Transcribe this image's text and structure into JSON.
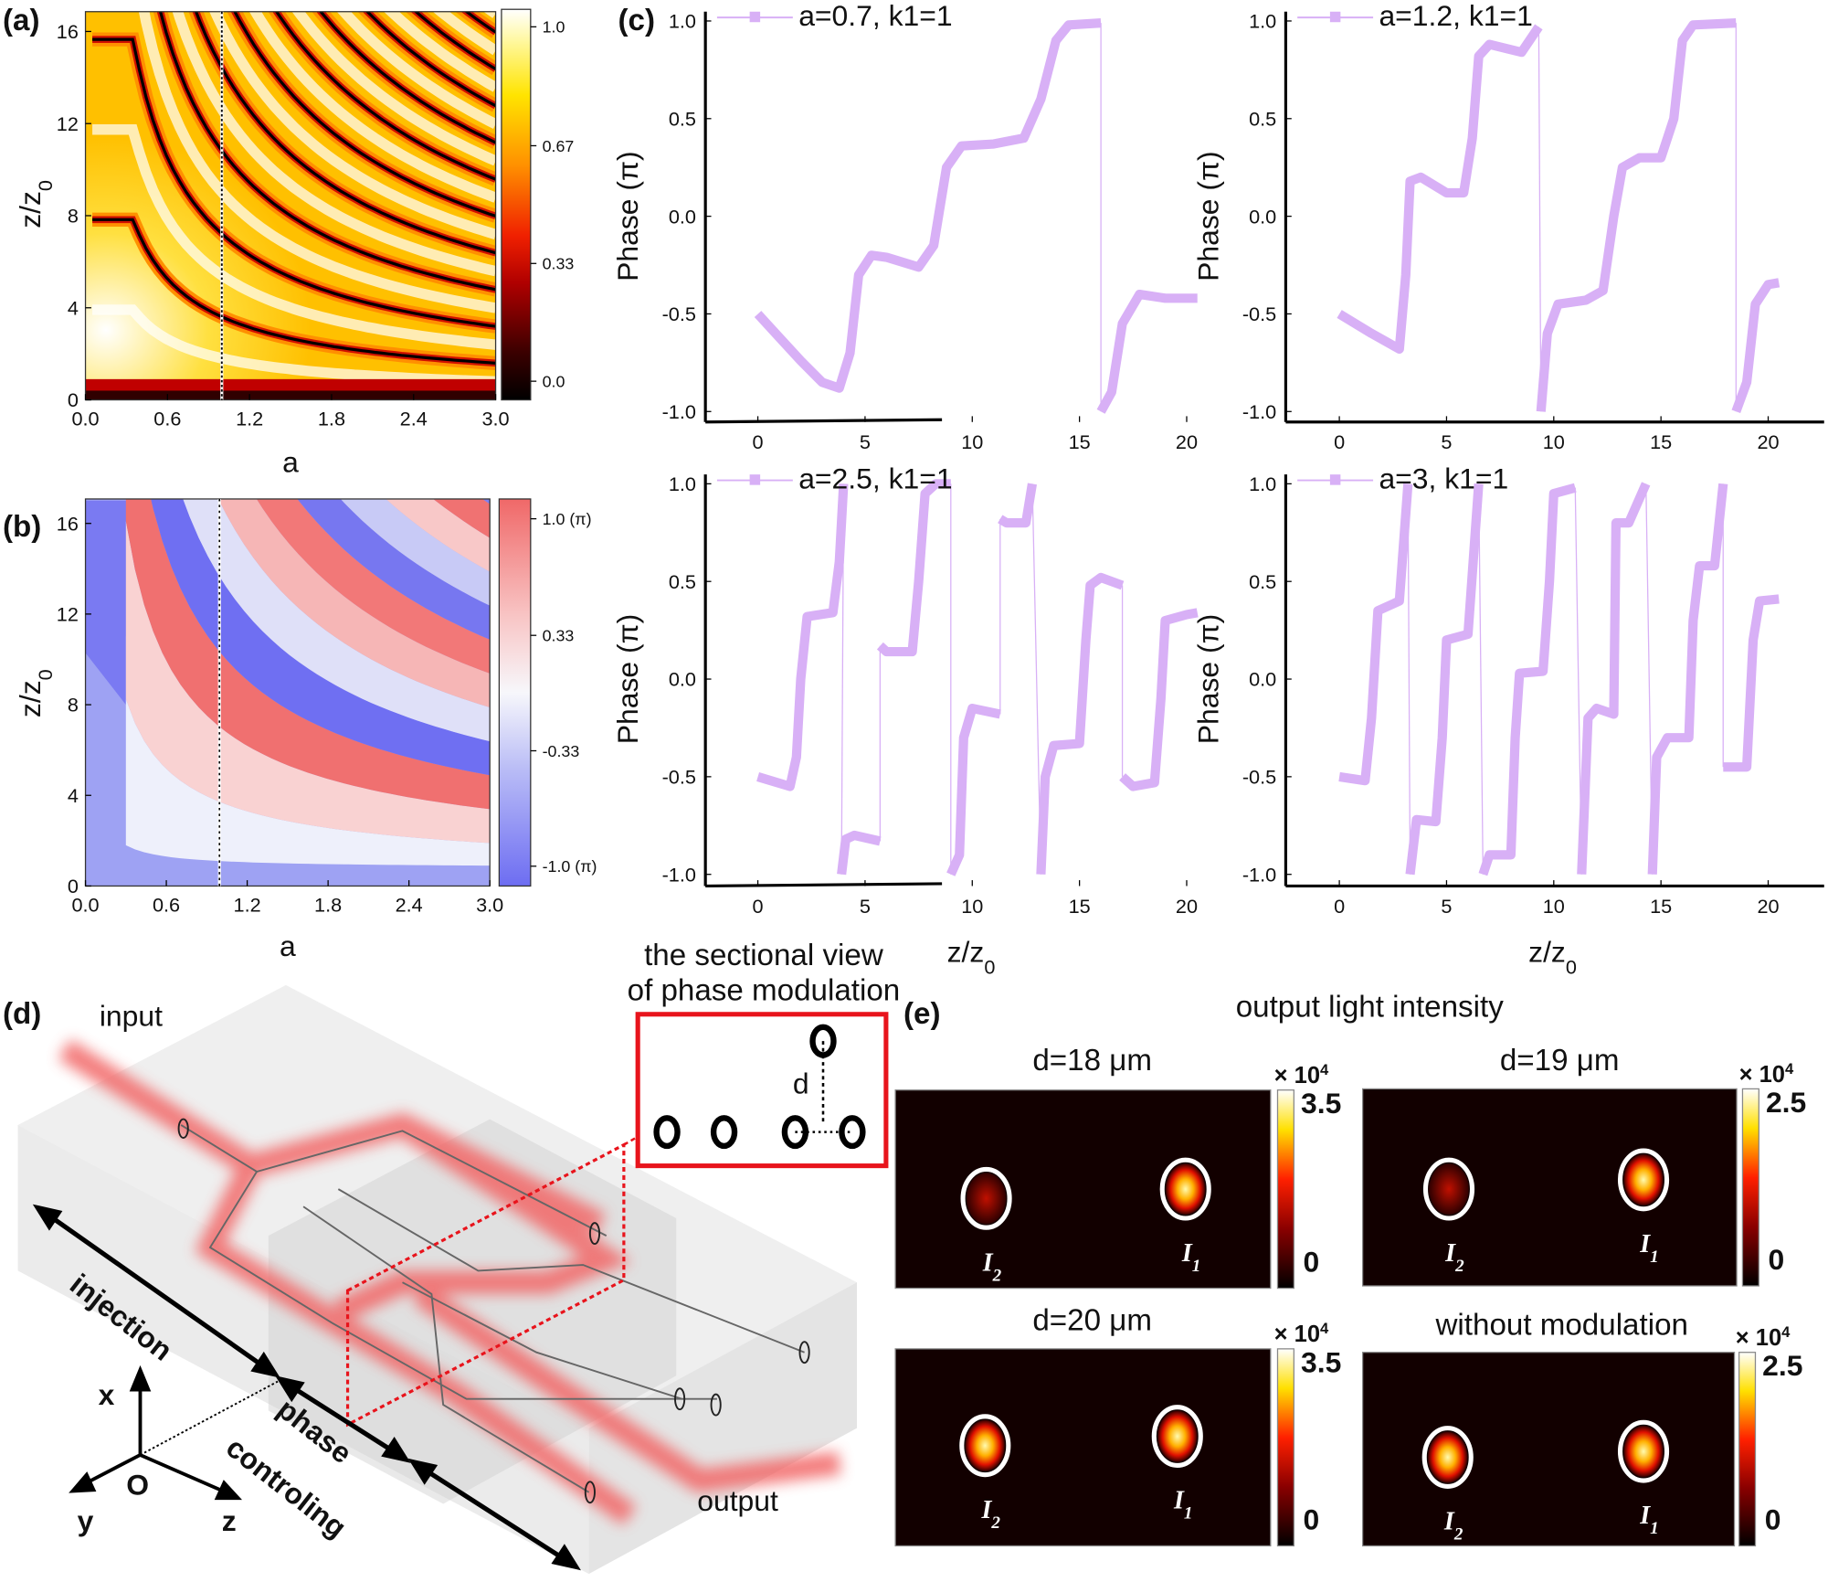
{
  "panel_labels": {
    "a": "(a)",
    "b": "(b)",
    "c": "(c)",
    "d": "(d)",
    "e": "(e)"
  },
  "chart_data": [
    {
      "id": "a",
      "type": "heatmap",
      "title": "",
      "xlabel": "a",
      "ylabel": {
        "main": "z/z",
        "sub": "0"
      },
      "xlim": [
        0,
        3.0
      ],
      "ylim": [
        0,
        17
      ],
      "xticks": [
        "0.0",
        "0.6",
        "1.2",
        "1.8",
        "2.4",
        "3.0"
      ],
      "yticks": [
        "0",
        "4",
        "8",
        "12",
        "16"
      ],
      "marker_line_a": 1.0,
      "colorbar": {
        "ticks": [
          "1.0",
          "0.67",
          "0.33",
          "0.0"
        ],
        "range": [
          0,
          1
        ],
        "colormap": "hot"
      }
    },
    {
      "id": "b",
      "type": "heatmap",
      "title": "",
      "xlabel": "a",
      "ylabel": {
        "main": "z/z",
        "sub": "0"
      },
      "xlim": [
        0,
        3.0
      ],
      "ylim": [
        0,
        17
      ],
      "xticks": [
        "0.0",
        "0.6",
        "1.2",
        "1.8",
        "2.4",
        "3.0"
      ],
      "yticks": [
        "0",
        "4",
        "8",
        "12",
        "16"
      ],
      "marker_line_a": 1.0,
      "colorbar": {
        "ticks": [
          "1.0 (π)",
          "0.33",
          "-0.33",
          "-1.0 (π)"
        ],
        "range": [
          -1,
          1
        ],
        "colormap": "blue-white-red"
      }
    },
    {
      "id": "c",
      "type": "line",
      "ylabel": "Phase (π)",
      "xlabel": {
        "main": "z/z",
        "sub": "0"
      },
      "xticks": [
        "0",
        "5",
        "10",
        "15",
        "20"
      ],
      "yticks": [
        "1.0",
        "0.5",
        "0.0",
        "-0.5",
        "-1.0"
      ],
      "xlim": [
        -2.4,
        21
      ],
      "ylim": [
        -1.0,
        1.0
      ],
      "color": "#d8b0f6",
      "series": [
        {
          "name": "a=0.7, k1=1",
          "segments": [
            [
              [
                0,
                -0.5
              ],
              [
                1,
                -0.62
              ],
              [
                2,
                -0.74
              ],
              [
                3,
                -0.85
              ],
              [
                3.8,
                -0.88
              ],
              [
                4.3,
                -0.7
              ],
              [
                4.7,
                -0.3
              ],
              [
                5.3,
                -0.2
              ],
              [
                6,
                -0.21
              ],
              [
                7.5,
                -0.26
              ],
              [
                8.2,
                -0.15
              ],
              [
                8.8,
                0.25
              ],
              [
                9.5,
                0.36
              ],
              [
                11,
                0.37
              ],
              [
                12.4,
                0.4
              ],
              [
                13.2,
                0.6
              ],
              [
                13.9,
                0.9
              ],
              [
                14.5,
                0.98
              ],
              [
                16,
                0.99
              ]
            ],
            [
              [
                16,
                -1.0
              ],
              [
                16.5,
                -0.9
              ],
              [
                17,
                -0.55
              ],
              [
                17.8,
                -0.4
              ],
              [
                19,
                -0.42
              ],
              [
                20.5,
                -0.42
              ]
            ]
          ]
        },
        {
          "name": "a=1.2, k1=1",
          "segments": [
            [
              [
                0,
                -0.5
              ],
              [
                1.5,
                -0.6
              ],
              [
                2.8,
                -0.68
              ],
              [
                3.1,
                -0.3
              ],
              [
                3.3,
                0.18
              ],
              [
                3.8,
                0.2
              ],
              [
                5,
                0.12
              ],
              [
                5.8,
                0.12
              ],
              [
                6.2,
                0.4
              ],
              [
                6.5,
                0.82
              ],
              [
                7,
                0.88
              ],
              [
                8.5,
                0.84
              ],
              [
                9.3,
                0.97
              ]
            ],
            [
              [
                9.4,
                -1.0
              ],
              [
                9.7,
                -0.6
              ],
              [
                10.2,
                -0.45
              ],
              [
                11.5,
                -0.43
              ],
              [
                12.3,
                -0.38
              ],
              [
                12.8,
                0.0
              ],
              [
                13.2,
                0.25
              ],
              [
                14,
                0.3
              ],
              [
                15,
                0.3
              ],
              [
                15.6,
                0.5
              ],
              [
                16,
                0.9
              ],
              [
                16.5,
                0.98
              ],
              [
                18.5,
                0.99
              ]
            ],
            [
              [
                18.5,
                -1.0
              ],
              [
                19,
                -0.85
              ],
              [
                19.4,
                -0.45
              ],
              [
                20,
                -0.35
              ],
              [
                20.5,
                -0.34
              ]
            ]
          ]
        },
        {
          "name": "a=2.5, k1=1",
          "segments": [
            [
              [
                0,
                -0.5
              ],
              [
                1.5,
                -0.55
              ],
              [
                1.8,
                -0.4
              ],
              [
                2,
                0
              ],
              [
                2.3,
                0.32
              ],
              [
                3.5,
                0.34
              ],
              [
                3.8,
                0.6
              ],
              [
                4,
                1.0
              ]
            ],
            [
              [
                3.9,
                -1.0
              ],
              [
                4.1,
                -0.82
              ],
              [
                4.5,
                -0.8
              ],
              [
                5.7,
                -0.83
              ]
            ],
            [
              [
                5.7,
                0.17
              ],
              [
                6,
                0.14
              ],
              [
                7.2,
                0.14
              ],
              [
                7.5,
                0.5
              ],
              [
                7.8,
                0.95
              ],
              [
                8.3,
                1.0
              ],
              [
                9,
                1.0
              ]
            ],
            [
              [
                9,
                -1.0
              ],
              [
                9.4,
                -0.9
              ],
              [
                9.6,
                -0.3
              ],
              [
                10,
                -0.15
              ],
              [
                11.3,
                -0.18
              ]
            ],
            [
              [
                11.3,
                0.82
              ],
              [
                11.6,
                0.8
              ],
              [
                12.5,
                0.8
              ],
              [
                12.8,
                1.0
              ]
            ],
            [
              [
                13.2,
                -1.0
              ],
              [
                13.4,
                -0.5
              ],
              [
                13.8,
                -0.34
              ],
              [
                15,
                -0.33
              ],
              [
                15.3,
                0.2
              ],
              [
                15.5,
                0.48
              ],
              [
                16,
                0.52
              ],
              [
                17,
                0.48
              ]
            ],
            [
              [
                17,
                -0.5
              ],
              [
                17.5,
                -0.55
              ],
              [
                18.5,
                -0.53
              ],
              [
                18.8,
                -0.1
              ],
              [
                19,
                0.3
              ],
              [
                20,
                0.33
              ],
              [
                20.5,
                0.34
              ]
            ]
          ]
        },
        {
          "name": "a=3, k1=1",
          "segments": [
            [
              [
                0,
                -0.5
              ],
              [
                1.2,
                -0.52
              ],
              [
                1.5,
                -0.2
              ],
              [
                1.8,
                0.35
              ],
              [
                2.8,
                0.4
              ],
              [
                3.2,
                1.0
              ]
            ],
            [
              [
                3.3,
                -1.0
              ],
              [
                3.6,
                -0.72
              ],
              [
                4.5,
                -0.73
              ],
              [
                4.8,
                -0.3
              ],
              [
                5,
                0.2
              ],
              [
                6,
                0.23
              ],
              [
                6.5,
                1.0
              ]
            ],
            [
              [
                6.7,
                -1.0
              ],
              [
                7,
                -0.9
              ],
              [
                8,
                -0.9
              ],
              [
                8.2,
                -0.3
              ],
              [
                8.4,
                0.03
              ],
              [
                9.5,
                0.04
              ],
              [
                9.8,
                0.5
              ],
              [
                10,
                0.95
              ],
              [
                11,
                0.98
              ]
            ],
            [
              [
                11.3,
                -1.0
              ],
              [
                11.6,
                -0.2
              ],
              [
                12,
                -0.15
              ],
              [
                12.8,
                -0.18
              ],
              [
                12.9,
                0.8
              ],
              [
                13.5,
                0.8
              ],
              [
                14.3,
                1.0
              ]
            ],
            [
              [
                14.6,
                -1.0
              ],
              [
                14.8,
                -0.4
              ],
              [
                15.3,
                -0.3
              ],
              [
                16.3,
                -0.3
              ],
              [
                16.5,
                0.3
              ],
              [
                16.8,
                0.58
              ],
              [
                17.5,
                0.58
              ],
              [
                17.9,
                1.0
              ]
            ],
            [
              [
                17.9,
                -0.45
              ],
              [
                19,
                -0.45
              ],
              [
                19.3,
                0.2
              ],
              [
                19.6,
                0.4
              ],
              [
                20.5,
                0.41
              ]
            ]
          ]
        }
      ]
    },
    {
      "id": "e",
      "type": "heatmap",
      "title": "output light intensity",
      "colorbar_multiplier": {
        "base": "× 10",
        "exp": "4"
      },
      "plots": [
        {
          "title": "d=18 μm",
          "cmax": "3.5",
          "cmin": "0",
          "I2_rel": 0.2,
          "I1_rel": 1.0
        },
        {
          "title": "d=19 μm",
          "cmax": "2.5",
          "cmin": "0",
          "I2_rel": 0.45,
          "I1_rel": 1.0
        },
        {
          "title": "d=20 μm",
          "cmax": "3.5",
          "cmin": "0",
          "I2_rel": 1.0,
          "I1_rel": 1.0
        },
        {
          "title": "without modulation",
          "cmax": "2.5",
          "cmin": "0",
          "I2_rel": 1.0,
          "I1_rel": 1.0
        }
      ],
      "spot_labels": {
        "I2": {
          "main": "I",
          "sub": "2"
        },
        "I1": {
          "main": "I",
          "sub": "1"
        }
      }
    }
  ],
  "diagram": {
    "input": "input",
    "output": "output",
    "injection": "injection",
    "phase": "phase",
    "controling": "controling",
    "axis_x": "x",
    "axis_y": "y",
    "axis_z": "z",
    "origin": "O",
    "section_title_1": "the sectional view",
    "section_title_2": "of phase modulation",
    "section_d": "d"
  },
  "colors": {
    "phase_line": "#d8b0f6",
    "laser": "#f06060",
    "section_box": "#e8141c"
  }
}
